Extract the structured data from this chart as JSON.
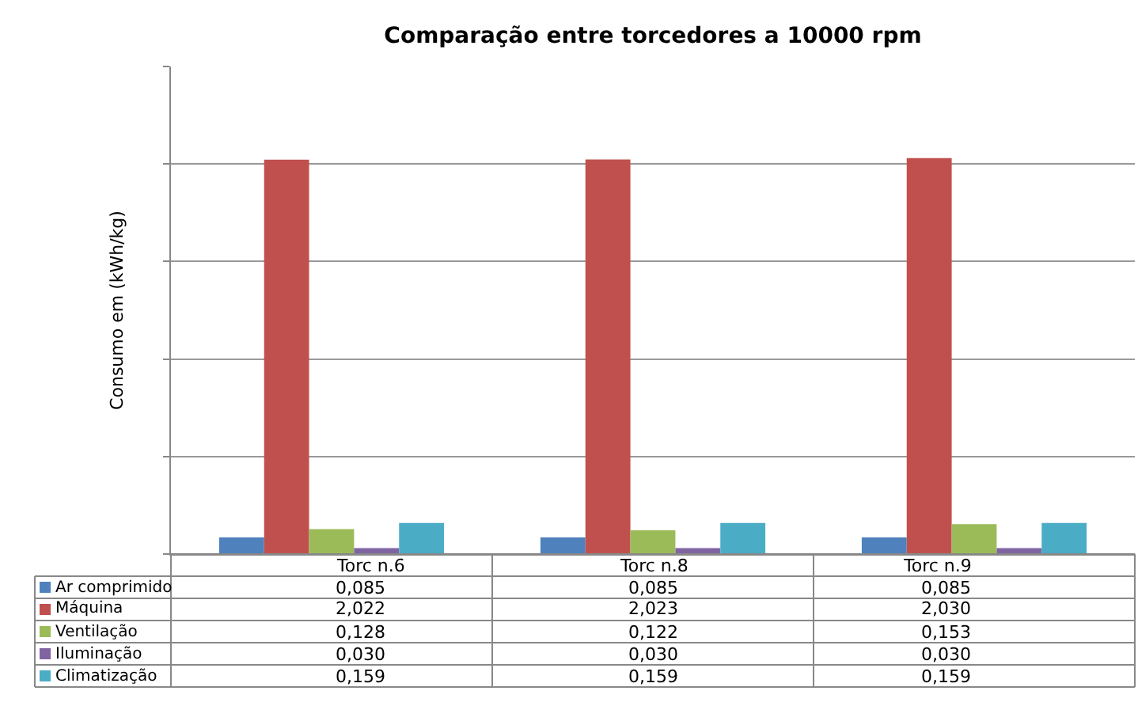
{
  "chart_data": {
    "type": "bar",
    "title": "Comparação entre torcedores a 10000 rpm",
    "ylabel": "Consumo em (kWh/kg)",
    "categories": [
      "Torc n.6",
      "Torc n.8",
      "Torc n.9"
    ],
    "series": [
      {
        "name": "Ar comprimido",
        "color": "#4f81bd",
        "values": [
          0.085,
          0.085,
          0.085
        ],
        "value_labels": [
          "0,085",
          "0,085",
          "0,085"
        ]
      },
      {
        "name": "Máquina",
        "color": "#c0504d",
        "values": [
          2.022,
          2.023,
          2.03
        ],
        "value_labels": [
          "2,022",
          "2,023",
          "2,030"
        ]
      },
      {
        "name": "Ventilação",
        "color": "#9bbb59",
        "values": [
          0.128,
          0.122,
          0.153
        ],
        "value_labels": [
          "0,128",
          "0,122",
          "0,153"
        ]
      },
      {
        "name": "Iluminação",
        "color": "#8064a2",
        "values": [
          0.03,
          0.03,
          0.03
        ],
        "value_labels": [
          "0,030",
          "0,030",
          "0,030"
        ]
      },
      {
        "name": "Climatização",
        "color": "#4bacc6",
        "values": [
          0.159,
          0.159,
          0.159
        ],
        "value_labels": [
          "0,159",
          "0,159",
          "0,159"
        ]
      }
    ],
    "ylim": [
      0,
      2.5
    ],
    "yticks": [
      {
        "value": 0,
        "label": null
      },
      {
        "value": 0.5,
        "label": null
      },
      {
        "value": 1,
        "label": null
      },
      {
        "value": 1.5,
        "label": null
      },
      {
        "value": 2,
        "label": null
      },
      {
        "value": 2.5,
        "label": null
      }
    ],
    "grid": "y",
    "legend": "bottom left"
  }
}
